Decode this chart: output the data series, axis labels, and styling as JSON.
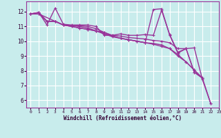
{
  "xlabel": "Windchill (Refroidissement éolien,°C)",
  "ylabel": "",
  "xlim": [
    -0.5,
    23
  ],
  "ylim": [
    5.5,
    12.7
  ],
  "yticks": [
    6,
    7,
    8,
    9,
    10,
    11,
    12
  ],
  "xticks": [
    0,
    1,
    2,
    3,
    4,
    5,
    6,
    7,
    8,
    9,
    10,
    11,
    12,
    13,
    14,
    15,
    16,
    17,
    18,
    19,
    20,
    21,
    22,
    23
  ],
  "background_color": "#c8ecec",
  "grid_color": "#ffffff",
  "line_color": "#993399",
  "line_width": 1.0,
  "marker_size": 2.5,
  "series": [
    {
      "x": [
        0,
        1,
        2,
        3,
        4,
        5,
        6,
        7,
        8,
        9,
        10,
        11,
        12,
        13,
        14,
        15,
        16,
        17,
        18,
        19,
        20,
        21
      ],
      "y": [
        11.85,
        11.95,
        11.1,
        12.25,
        11.15,
        11.1,
        11.1,
        11.1,
        11.0,
        10.4,
        10.4,
        10.5,
        10.4,
        10.4,
        10.45,
        10.4,
        12.1,
        10.45,
        9.25,
        9.5,
        7.9,
        7.5
      ]
    },
    {
      "x": [
        0,
        1,
        2,
        3,
        4,
        5,
        6,
        7,
        8,
        9,
        10,
        11,
        12,
        13,
        14,
        15,
        16,
        17,
        18,
        19,
        20,
        21,
        22
      ],
      "y": [
        11.85,
        11.95,
        11.35,
        11.35,
        11.1,
        11.05,
        11.05,
        11.0,
        10.85,
        10.6,
        10.4,
        10.35,
        10.25,
        10.2,
        10.15,
        10.05,
        10.0,
        9.9,
        9.5,
        9.5,
        9.55,
        7.4,
        5.8
      ]
    },
    {
      "x": [
        0,
        1,
        3,
        4,
        5,
        6,
        7,
        8,
        9,
        10,
        11,
        12,
        13,
        14,
        15,
        16,
        17,
        18,
        19,
        20,
        21
      ],
      "y": [
        11.85,
        11.85,
        11.35,
        11.1,
        11.0,
        10.9,
        10.8,
        10.7,
        10.6,
        10.35,
        10.2,
        10.1,
        10.0,
        9.9,
        9.8,
        9.65,
        9.5,
        9.1,
        8.6,
        8.05,
        7.5
      ]
    },
    {
      "x": [
        0,
        1,
        2,
        3,
        4,
        5,
        6,
        7,
        8,
        9,
        10,
        11,
        12,
        13,
        14,
        15,
        16,
        17,
        18,
        19,
        20,
        21
      ],
      "y": [
        11.85,
        11.85,
        11.35,
        11.35,
        11.1,
        11.0,
        10.9,
        10.8,
        10.7,
        10.5,
        10.3,
        10.2,
        10.1,
        10.0,
        9.9,
        9.85,
        9.75,
        9.5,
        9.0,
        8.6,
        8.05,
        7.5
      ]
    },
    {
      "x": [
        0,
        1,
        2,
        3,
        4,
        5,
        6,
        7,
        8,
        9,
        10,
        11,
        12,
        13,
        14,
        15,
        16,
        17,
        18,
        19,
        20,
        21,
        22
      ],
      "y": [
        11.85,
        11.95,
        11.35,
        11.35,
        11.1,
        11.05,
        11.0,
        10.9,
        10.7,
        10.5,
        10.35,
        10.2,
        10.1,
        10.0,
        9.9,
        12.15,
        12.2,
        10.4,
        9.2,
        9.5,
        7.9,
        7.5,
        5.8
      ]
    }
  ]
}
